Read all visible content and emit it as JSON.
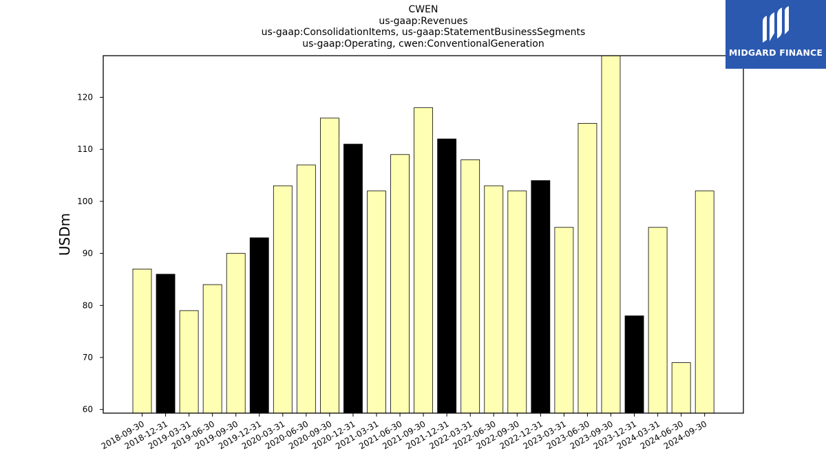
{
  "chart_data": {
    "type": "bar",
    "title_lines": [
      "CWEN",
      "us-gaap:Revenues",
      "us-gaap:ConsolidationItems, us-gaap:StatementBusinessSegments",
      "us-gaap:Operating, cwen:ConventionalGeneration"
    ],
    "xlabel": "",
    "ylabel": "USDm",
    "ylim": [
      59.3,
      128
    ],
    "yticks": [
      60,
      70,
      80,
      90,
      100,
      110,
      120
    ],
    "grid": false,
    "categories": [
      "2018-09-30",
      "2018-12-31",
      "2019-03-31",
      "2019-06-30",
      "2019-09-30",
      "2019-12-31",
      "2020-03-31",
      "2020-06-30",
      "2020-09-30",
      "2020-12-31",
      "2021-03-31",
      "2021-06-30",
      "2021-09-30",
      "2021-12-31",
      "2022-03-31",
      "2022-06-30",
      "2022-09-30",
      "2022-12-31",
      "2023-03-31",
      "2023-06-30",
      "2023-09-30",
      "2023-12-31",
      "2024-03-31",
      "2024-06-30",
      "2024-09-30"
    ],
    "values": [
      87,
      86,
      79,
      84,
      90,
      93,
      103,
      107,
      116,
      111,
      102,
      109,
      118,
      112,
      108,
      103,
      102,
      104,
      95,
      115,
      128,
      78,
      95,
      69,
      102
    ],
    "bar_colors": [
      "#ffffb3",
      "#000000",
      "#ffffb3",
      "#ffffb3",
      "#ffffb3",
      "#000000",
      "#ffffb3",
      "#ffffb3",
      "#ffffb3",
      "#000000",
      "#ffffb3",
      "#ffffb3",
      "#ffffb3",
      "#000000",
      "#ffffb3",
      "#ffffb3",
      "#ffffb3",
      "#000000",
      "#ffffb3",
      "#ffffb3",
      "#ffffb3",
      "#000000",
      "#ffffb3",
      "#ffffb3",
      "#ffffb3"
    ]
  },
  "logo": {
    "text": "MIDGARD FINANCE"
  }
}
